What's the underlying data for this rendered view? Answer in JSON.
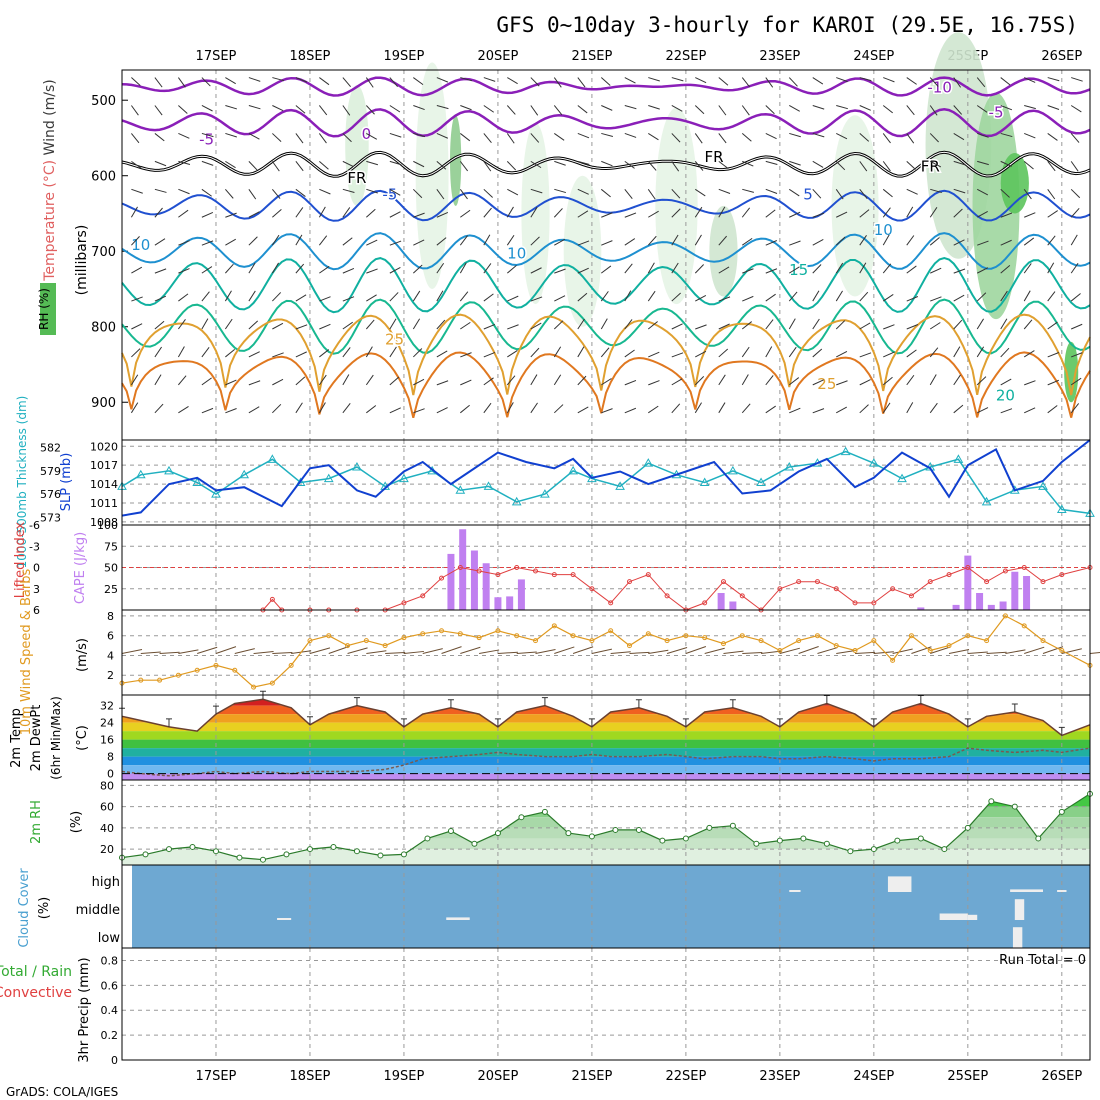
{
  "title": "GFS 0~10day 3-hourly for KAROI (29.5E, 16.75S)",
  "footer": "GrADS: COLA/IGES",
  "run_total": "Run Total = 0",
  "colors": {
    "grid": "#999999",
    "temp_text": "#e06060",
    "wind_text": "#3a3a3a",
    "rh_text": "#33aa33",
    "cape": "#c080f0",
    "lifted": "#e04040",
    "thickness": "#20b0c0",
    "slp": "#1040d0",
    "wind10": "#e09a20",
    "cloud": "#6ea8d2",
    "rh2m": "#33aa33"
  },
  "chart_data": [
    {
      "type": "line",
      "panel": "upper-air",
      "x": [
        "17SEP",
        "18SEP",
        "19SEP",
        "20SEP",
        "21SEP",
        "22SEP",
        "23SEP",
        "24SEP",
        "25SEP",
        "26SEP"
      ],
      "ylabel_parts": [
        "Temperature",
        "(°C)",
        "Wind (m/s)",
        "(millibars)"
      ],
      "rh_label": "RH (%)",
      "yticks": [
        "500",
        "600",
        "700",
        "800",
        "900"
      ],
      "ylim": [
        460,
        950
      ],
      "contour_labels": [
        {
          "text": "-10",
          "day": 24.7,
          "p": 483,
          "color": "#8a1fb8"
        },
        {
          "text": "-5",
          "day": 25.3,
          "p": 516,
          "color": "#8a1fb8"
        },
        {
          "text": "-5",
          "day": 16.9,
          "p": 552,
          "color": "#8a1fb8"
        },
        {
          "text": "0",
          "day": 18.6,
          "p": 545,
          "color": "#8a1fb8"
        },
        {
          "text": "FR",
          "day": 22.3,
          "p": 575,
          "color": "#000000"
        },
        {
          "text": "FR",
          "day": 18.5,
          "p": 603,
          "color": "#000000"
        },
        {
          "text": "FR",
          "day": 24.6,
          "p": 588,
          "color": "#000000"
        },
        {
          "text": "-5",
          "day": 18.85,
          "p": 625,
          "color": "#2050d0"
        },
        {
          "text": "5",
          "day": 23.3,
          "p": 625,
          "color": "#2050d0"
        },
        {
          "text": "10",
          "day": 16.2,
          "p": 692,
          "color": "#1e90d0"
        },
        {
          "text": "10",
          "day": 20.2,
          "p": 703,
          "color": "#1e90d0"
        },
        {
          "text": "10",
          "day": 24.1,
          "p": 672,
          "color": "#1e90d0"
        },
        {
          "text": "15",
          "day": 23.2,
          "p": 725,
          "color": "#10b0a0"
        },
        {
          "text": "25",
          "day": 18.9,
          "p": 817,
          "color": "#e0a030"
        },
        {
          "text": "25",
          "day": 23.5,
          "p": 876,
          "color": "#e0a030"
        },
        {
          "text": "20",
          "day": 25.4,
          "p": 891,
          "color": "#10b0a0"
        }
      ]
    },
    {
      "type": "line",
      "panel": "slp-thickness",
      "ylabel_left": "1000-500mb Thickness (dm)",
      "ylabel_right": "SLP (mb)",
      "yticks_left": [
        "582",
        "579",
        "576",
        "573"
      ],
      "yticks_right": [
        "1020",
        "1017",
        "1014",
        "1011",
        "1008"
      ],
      "ylim_left": [
        572,
        583
      ],
      "ylim_right": [
        1007.5,
        1021
      ],
      "slp_x": [
        16.0,
        16.2,
        16.5,
        16.8,
        17.0,
        17.3,
        17.7,
        18.0,
        18.2,
        18.5,
        18.7,
        19.0,
        19.2,
        19.5,
        19.7,
        20.0,
        20.3,
        20.6,
        20.8,
        21.0,
        21.3,
        21.6,
        22.0,
        22.3,
        22.6,
        22.9,
        23.2,
        23.5,
        23.8,
        24.0,
        24.3,
        24.6,
        24.8,
        25.0,
        25.3,
        25.5,
        25.8,
        26.0,
        26.3
      ],
      "slp": [
        1009,
        1009.5,
        1014,
        1015,
        1013,
        1013.5,
        1010.5,
        1016.5,
        1017,
        1013,
        1012,
        1016,
        1017.5,
        1014,
        1016,
        1019,
        1017.5,
        1016.5,
        1018,
        1015,
        1016,
        1014,
        1016,
        1017.5,
        1012.5,
        1013,
        1016,
        1018,
        1013.5,
        1015,
        1019,
        1016.5,
        1012,
        1017,
        1019.5,
        1013,
        1014.5,
        1017.5,
        1021
      ],
      "thk_x": [
        16.0,
        16.2,
        16.5,
        16.8,
        17.0,
        17.3,
        17.6,
        17.9,
        18.2,
        18.5,
        18.8,
        19.0,
        19.3,
        19.6,
        19.9,
        20.2,
        20.5,
        20.8,
        21.0,
        21.3,
        21.6,
        21.9,
        22.2,
        22.5,
        22.8,
        23.1,
        23.4,
        23.7,
        24.0,
        24.3,
        24.6,
        24.9,
        25.2,
        25.5,
        25.8,
        26.0,
        26.3
      ],
      "thk": [
        577,
        578.5,
        579,
        577.5,
        576,
        578.5,
        580.5,
        577.5,
        578,
        579.5,
        577,
        578,
        579,
        576.5,
        577,
        575,
        576,
        579,
        578,
        577,
        580,
        578.5,
        577.5,
        579,
        577.5,
        579.5,
        580,
        581.5,
        580,
        578,
        579.5,
        580.5,
        575,
        576.5,
        577,
        574,
        573.5
      ]
    },
    {
      "type": "bar",
      "panel": "cape-li",
      "ylabel_left": "Lifted Index",
      "ylabel_right": "CAPE (J/kg)",
      "yticks_left": [
        "-6",
        "-3",
        "0",
        "3",
        "6"
      ],
      "yticks_right": [
        "100",
        "75",
        "50",
        "25"
      ],
      "ylim_cape": [
        0,
        100
      ],
      "cape_x": [
        19.5,
        19.625,
        19.75,
        19.875,
        20.0,
        20.125,
        20.25,
        22.375,
        22.5,
        24.5,
        24.875,
        25.0,
        25.125,
        25.25,
        25.375,
        25.5,
        25.625
      ],
      "cape": [
        66,
        95,
        70,
        55,
        15,
        16,
        36,
        20,
        10,
        3,
        6,
        64,
        20,
        6,
        10,
        45,
        40
      ],
      "li_x": [
        17.5,
        17.6,
        17.7,
        18.0,
        18.2,
        18.5,
        18.8,
        19.0,
        19.2,
        19.4,
        19.6,
        19.8,
        20.0,
        20.2,
        20.4,
        20.6,
        20.8,
        21.0,
        21.2,
        21.4,
        21.6,
        21.8,
        22.0,
        22.2,
        22.4,
        22.6,
        22.8,
        23.0,
        23.2,
        23.4,
        23.6,
        23.8,
        24.0,
        24.2,
        24.4,
        24.6,
        24.8,
        25.0,
        25.2,
        25.4,
        25.6,
        25.8,
        26.0,
        26.3
      ],
      "li": [
        6,
        4.5,
        6,
        6,
        6,
        6,
        6,
        5,
        4,
        1.5,
        0,
        0.5,
        1,
        0,
        0.5,
        1,
        1,
        3,
        5,
        2,
        1,
        4,
        6,
        5,
        2,
        4,
        6,
        3,
        2,
        2,
        3,
        5,
        5,
        3,
        4,
        2,
        1,
        0,
        2,
        0.5,
        0,
        2,
        1,
        0
      ]
    },
    {
      "type": "line",
      "panel": "wind10",
      "ylabel_left": "10m Wind Speed & Barbs",
      "ylabel_right": "(m/s)",
      "yticks": [
        "8",
        "6",
        "4",
        "2"
      ],
      "ylim": [
        0,
        8.6
      ],
      "x": [
        16.0,
        16.2,
        16.4,
        16.6,
        16.8,
        17.0,
        17.2,
        17.4,
        17.6,
        17.8,
        18.0,
        18.2,
        18.4,
        18.6,
        18.8,
        19.0,
        19.2,
        19.4,
        19.6,
        19.8,
        20.0,
        20.2,
        20.4,
        20.6,
        20.8,
        21.0,
        21.2,
        21.4,
        21.6,
        21.8,
        22.0,
        22.2,
        22.4,
        22.6,
        22.8,
        23.0,
        23.2,
        23.4,
        23.6,
        23.8,
        24.0,
        24.2,
        24.4,
        24.6,
        24.8,
        25.0,
        25.2,
        25.4,
        25.6,
        25.8,
        26.0,
        26.3
      ],
      "speed": [
        1.2,
        1.5,
        1.5,
        2.0,
        2.5,
        3.0,
        2.5,
        0.8,
        1.2,
        3.0,
        5.5,
        6.0,
        5.0,
        5.5,
        5.0,
        5.8,
        6.2,
        6.5,
        6.2,
        5.8,
        6.5,
        6.0,
        5.5,
        7.0,
        6.0,
        5.5,
        6.5,
        5.0,
        6.2,
        5.5,
        6.0,
        5.8,
        5.2,
        6.0,
        5.5,
        4.5,
        5.5,
        6.0,
        5.0,
        4.5,
        5.5,
        3.5,
        6.0,
        4.5,
        5.0,
        6.0,
        5.5,
        8.0,
        7.0,
        5.5,
        4.5,
        3.0
      ]
    },
    {
      "type": "line",
      "panel": "temp-dewpt",
      "ylabel_parts": [
        "2m Temp",
        "2m DewPt",
        "(6hr Min/Max)",
        "(°C)"
      ],
      "yticks": [
        "32",
        "24",
        "16",
        "8",
        "0"
      ],
      "ylim": [
        -3,
        37
      ],
      "x": [
        16.0,
        16.2,
        16.5,
        16.8,
        17.0,
        17.2,
        17.5,
        17.8,
        18.0,
        18.2,
        18.5,
        18.8,
        19.0,
        19.2,
        19.5,
        19.8,
        20.0,
        20.2,
        20.5,
        20.8,
        21.0,
        21.2,
        21.5,
        21.8,
        22.0,
        22.2,
        22.5,
        22.8,
        23.0,
        23.2,
        23.5,
        23.8,
        24.0,
        24.2,
        24.5,
        24.8,
        25.0,
        25.2,
        25.5,
        25.8,
        26.0,
        26.3
      ],
      "temp": [
        27,
        25,
        22,
        20,
        28,
        33,
        35,
        31,
        23,
        28,
        32,
        29,
        22,
        28,
        31,
        28,
        22,
        29,
        32,
        27,
        22,
        29,
        31,
        27,
        22,
        29,
        31,
        27,
        22,
        29,
        33,
        28,
        22,
        29,
        33,
        28,
        22,
        27,
        29,
        25,
        18,
        23
      ],
      "dewpt": [
        1,
        0,
        -1,
        0,
        1,
        0,
        1,
        0,
        1,
        1,
        1,
        2,
        4,
        7,
        8,
        9,
        10,
        9,
        8,
        8,
        9,
        8,
        8,
        9,
        8,
        7,
        8,
        8,
        7,
        7,
        8,
        7,
        6,
        7,
        7,
        8,
        12,
        11,
        10,
        11,
        10,
        12
      ]
    },
    {
      "type": "area",
      "panel": "rh2m",
      "ylabel_left": "2m RH",
      "ylabel_right": "(%)",
      "yticks": [
        "80",
        "60",
        "40",
        "20"
      ],
      "ylim": [
        5,
        85
      ],
      "x": [
        16.0,
        16.25,
        16.5,
        16.75,
        17.0,
        17.25,
        17.5,
        17.75,
        18.0,
        18.25,
        18.5,
        18.75,
        19.0,
        19.25,
        19.5,
        19.75,
        20.0,
        20.25,
        20.5,
        20.75,
        21.0,
        21.25,
        21.5,
        21.75,
        22.0,
        22.25,
        22.5,
        22.75,
        23.0,
        23.25,
        23.5,
        23.75,
        24.0,
        24.25,
        24.5,
        24.75,
        25.0,
        25.25,
        25.5,
        25.75,
        26.0,
        26.3
      ],
      "rh": [
        12,
        15,
        20,
        22,
        18,
        12,
        10,
        15,
        20,
        22,
        18,
        14,
        15,
        30,
        37,
        25,
        35,
        50,
        55,
        35,
        32,
        38,
        38,
        28,
        30,
        40,
        42,
        25,
        28,
        30,
        25,
        18,
        20,
        28,
        30,
        20,
        40,
        65,
        60,
        30,
        55,
        72
      ]
    },
    {
      "type": "bar",
      "panel": "cloud-cover",
      "ylabel_left": "Cloud Cover",
      "ylabel_right": "(%)",
      "levels": [
        "high",
        "middle",
        "low"
      ],
      "blocks": [
        {
          "level": "middle",
          "day": 17.65,
          "width": 0.15,
          "frac": 0.05
        },
        {
          "level": "middle",
          "day": 19.45,
          "width": 0.25,
          "frac": 0.1
        },
        {
          "level": "high",
          "day": 23.1,
          "width": 0.12,
          "frac": 0.05
        },
        {
          "level": "high",
          "day": 24.15,
          "width": 0.25,
          "frac": 0.6
        },
        {
          "level": "middle",
          "day": 24.7,
          "width": 0.3,
          "frac": 0.25
        },
        {
          "level": "middle",
          "day": 25.0,
          "width": 0.1,
          "frac": 0.2
        },
        {
          "level": "high",
          "day": 25.45,
          "width": 0.35,
          "frac": 0.1
        },
        {
          "level": "middle",
          "day": 25.5,
          "width": 0.1,
          "frac": 0.8
        },
        {
          "level": "low",
          "day": 25.48,
          "width": 0.1,
          "frac": 0.8
        },
        {
          "level": "high",
          "day": 25.95,
          "width": 0.1,
          "frac": 0.05
        }
      ]
    },
    {
      "type": "bar",
      "panel": "precip",
      "ylabel_parts": [
        "Total / Rain",
        "Convective",
        "3hr Precip (mm)"
      ],
      "yticks": [
        "0.8",
        "0.6",
        "0.4",
        "0.2",
        "0"
      ],
      "ylim": [
        0,
        0.9
      ],
      "values": []
    }
  ]
}
